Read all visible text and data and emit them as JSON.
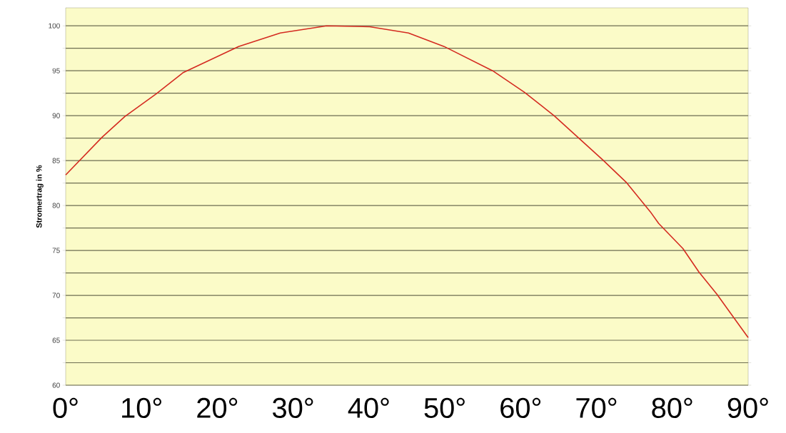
{
  "chart_data": {
    "type": "line",
    "ylabel": "Stromertrag in %",
    "xlim": [
      0,
      90
    ],
    "ylim": [
      60,
      102
    ],
    "xticks": [
      {
        "value": 0,
        "label": "0°"
      },
      {
        "value": 10,
        "label": "10°"
      },
      {
        "value": 20,
        "label": "20°"
      },
      {
        "value": 30,
        "label": "30°"
      },
      {
        "value": 40,
        "label": "40°"
      },
      {
        "value": 50,
        "label": "50°"
      },
      {
        "value": 60,
        "label": "60°"
      },
      {
        "value": 70,
        "label": "70°"
      },
      {
        "value": 80,
        "label": "80°"
      },
      {
        "value": 90,
        "label": "90°"
      }
    ],
    "yticks": [
      60,
      {
        "value": 62.5,
        "label": null
      },
      65,
      {
        "value": 67.5,
        "label": null
      },
      70,
      {
        "value": 72.5,
        "label": null
      },
      75,
      {
        "value": 77.5,
        "label": null
      },
      80,
      {
        "value": 82.5,
        "label": null
      },
      85,
      {
        "value": 87.5,
        "label": null
      },
      90,
      {
        "value": 92.5,
        "label": null
      },
      95,
      {
        "value": 97.5,
        "label": null
      },
      100
    ],
    "grid": "y",
    "marker": "none",
    "line_style": "solid",
    "series": [
      {
        "color": "#d42a20",
        "x": [
          0,
          4.8,
          7.8,
          11.9,
          15.5,
          22.8,
          28.3,
          34.4,
          40.1,
          45.2,
          49.9,
          56.3,
          60.5,
          64.4,
          70.8,
          73.9,
          77.1,
          78.2,
          81.4,
          83.5,
          85.9,
          90
        ],
        "values": [
          83.4,
          87.6,
          89.9,
          92.4,
          94.8,
          97.7,
          99.2,
          100,
          99.9,
          99.2,
          97.7,
          95,
          92.6,
          90,
          85.1,
          82.6,
          79.3,
          78,
          75.2,
          72.6,
          70.1,
          65.3
        ]
      }
    ]
  }
}
